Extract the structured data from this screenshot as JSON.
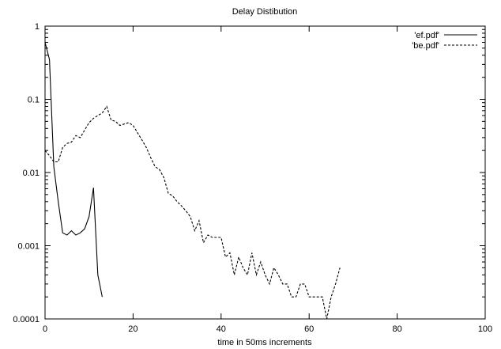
{
  "chart_data": {
    "type": "line",
    "title": "Delay Distibution",
    "xlabel": "time in 50ms increments",
    "ylabel": "",
    "xlim": [
      0,
      100
    ],
    "ylim": [
      0.0001,
      1
    ],
    "yscale": "log",
    "x_ticks": [
      0,
      20,
      40,
      60,
      80,
      100
    ],
    "x_tick_labels": [
      "0",
      "20",
      "40",
      "60",
      "80",
      "100"
    ],
    "y_ticks": [
      0.0001,
      0.001,
      0.01,
      0.1,
      1
    ],
    "y_tick_labels": [
      "0.0001",
      "0.001",
      "0.01",
      "0.1",
      "1"
    ],
    "grid": false,
    "legend_position": "top-right",
    "series": [
      {
        "name": "'ef.pdf'",
        "style": "solid",
        "x": [
          0,
          1,
          2,
          3,
          4,
          5,
          6,
          7,
          8,
          9,
          10,
          11,
          12,
          13
        ],
        "y": [
          0.6,
          0.35,
          0.012,
          0.004,
          0.0015,
          0.0014,
          0.0016,
          0.0014,
          0.0015,
          0.0017,
          0.0025,
          0.0062,
          0.0004,
          0.0002
        ]
      },
      {
        "name": "'be.pdf'",
        "style": "dashed",
        "x": [
          0,
          1,
          2,
          3,
          4,
          5,
          6,
          7,
          8,
          9,
          10,
          11,
          12,
          13,
          14,
          15,
          16,
          17,
          18,
          19,
          20,
          21,
          22,
          23,
          24,
          25,
          26,
          27,
          28,
          29,
          30,
          31,
          32,
          33,
          34,
          35,
          36,
          37,
          38,
          39,
          40,
          41,
          42,
          43,
          44,
          45,
          46,
          47,
          48,
          49,
          50,
          51,
          52,
          53,
          54,
          55,
          56,
          57,
          58,
          59,
          60,
          61,
          62,
          63,
          64,
          65,
          66,
          67
        ],
        "y": [
          0.02,
          0.017,
          0.014,
          0.014,
          0.022,
          0.025,
          0.026,
          0.032,
          0.03,
          0.038,
          0.048,
          0.055,
          0.06,
          0.065,
          0.08,
          0.052,
          0.05,
          0.044,
          0.046,
          0.048,
          0.044,
          0.035,
          0.028,
          0.022,
          0.016,
          0.012,
          0.011,
          0.0085,
          0.0052,
          0.0048,
          0.004,
          0.0035,
          0.003,
          0.0025,
          0.0016,
          0.0022,
          0.0011,
          0.0014,
          0.0013,
          0.0013,
          0.0013,
          0.0007,
          0.0008,
          0.0004,
          0.0007,
          0.0005,
          0.0004,
          0.0008,
          0.0004,
          0.0006,
          0.0004,
          0.0003,
          0.0005,
          0.0004,
          0.0003,
          0.0003,
          0.0002,
          0.0002,
          0.0003,
          0.0003,
          0.0002,
          0.0002,
          0.0002,
          0.0002,
          0.0001,
          0.0002,
          0.0003,
          0.0005
        ]
      }
    ]
  }
}
